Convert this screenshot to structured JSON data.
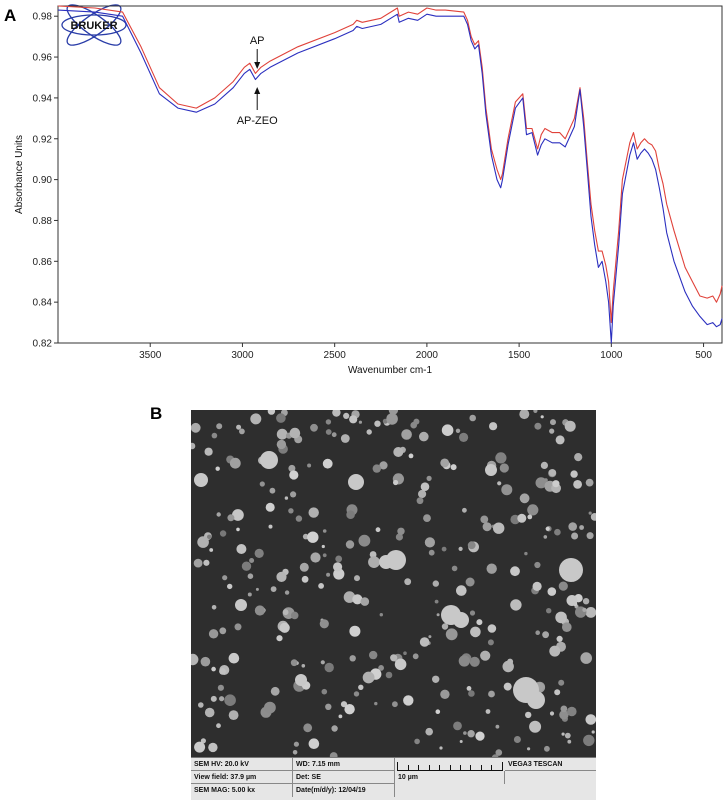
{
  "panels": {
    "a_label": "A",
    "b_label": "B"
  },
  "logo": {
    "text": "BRUKER",
    "color": "#2a3da8"
  },
  "chart_data": {
    "type": "line",
    "xlabel": "Wavenumber cm-1",
    "ylabel": "Absorbance Units",
    "xlim": [
      4000,
      400
    ],
    "ylim": [
      0.82,
      0.985
    ],
    "x_reversed": true,
    "grid": false,
    "xticks": [
      3500,
      3000,
      2500,
      2000,
      1500,
      1000,
      500
    ],
    "yticks": [
      0.82,
      0.84,
      0.86,
      0.88,
      0.9,
      0.92,
      0.94,
      0.96,
      0.98
    ],
    "annotations": [
      {
        "text": "AP",
        "x": 2920,
        "y": 0.953,
        "arrow": "down"
      },
      {
        "text": "AP-ZEO",
        "x": 2920,
        "y": 0.947,
        "arrow": "up"
      }
    ],
    "series": [
      {
        "color": "#e0423a",
        "x": [
          4000,
          3800,
          3650,
          3550,
          3450,
          3350,
          3250,
          3150,
          3050,
          2990,
          2960,
          2930,
          2900,
          2850,
          2700,
          2500,
          2400,
          2380,
          2350,
          2250,
          2160,
          2150,
          2100,
          2050,
          2000,
          1950,
          1900,
          1800,
          1780,
          1760,
          1740,
          1720,
          1700,
          1680,
          1650,
          1620,
          1600,
          1590,
          1560,
          1520,
          1480,
          1460,
          1430,
          1400,
          1380,
          1360,
          1320,
          1280,
          1250,
          1200,
          1170,
          1150,
          1130,
          1110,
          1090,
          1070,
          1050,
          1030,
          1015,
          1000,
          990,
          960,
          940,
          900,
          880,
          860,
          840,
          820,
          800,
          780,
          760,
          740,
          720,
          700,
          660,
          600,
          560,
          520,
          480,
          450,
          430,
          410,
          400
        ],
        "y": [
          0.985,
          0.984,
          0.982,
          0.965,
          0.945,
          0.937,
          0.935,
          0.94,
          0.948,
          0.955,
          0.957,
          0.952,
          0.955,
          0.958,
          0.965,
          0.972,
          0.976,
          0.978,
          0.977,
          0.979,
          0.984,
          0.98,
          0.982,
          0.981,
          0.984,
          0.983,
          0.983,
          0.982,
          0.978,
          0.97,
          0.966,
          0.968,
          0.955,
          0.935,
          0.915,
          0.905,
          0.9,
          0.903,
          0.92,
          0.938,
          0.942,
          0.925,
          0.925,
          0.915,
          0.922,
          0.925,
          0.923,
          0.923,
          0.92,
          0.93,
          0.945,
          0.93,
          0.908,
          0.888,
          0.875,
          0.865,
          0.865,
          0.858,
          0.85,
          0.83,
          0.845,
          0.875,
          0.9,
          0.918,
          0.923,
          0.915,
          0.918,
          0.92,
          0.918,
          0.917,
          0.914,
          0.905,
          0.898,
          0.888,
          0.875,
          0.857,
          0.85,
          0.843,
          0.842,
          0.843,
          0.84,
          0.844,
          0.848
        ]
      },
      {
        "color": "#2b2fbf",
        "x": [
          4000,
          3800,
          3650,
          3550,
          3450,
          3350,
          3250,
          3150,
          3050,
          2990,
          2960,
          2930,
          2900,
          2850,
          2700,
          2500,
          2400,
          2380,
          2350,
          2250,
          2160,
          2150,
          2100,
          2050,
          2000,
          1950,
          1900,
          1800,
          1780,
          1760,
          1740,
          1720,
          1700,
          1680,
          1650,
          1620,
          1600,
          1590,
          1560,
          1520,
          1480,
          1460,
          1430,
          1400,
          1380,
          1360,
          1320,
          1280,
          1250,
          1200,
          1170,
          1150,
          1130,
          1110,
          1090,
          1070,
          1050,
          1030,
          1015,
          1000,
          990,
          960,
          940,
          900,
          880,
          860,
          840,
          820,
          800,
          780,
          760,
          740,
          720,
          700,
          660,
          600,
          560,
          520,
          480,
          450,
          430,
          410,
          400
        ],
        "y": [
          0.983,
          0.982,
          0.98,
          0.962,
          0.942,
          0.935,
          0.933,
          0.937,
          0.945,
          0.952,
          0.954,
          0.949,
          0.952,
          0.955,
          0.962,
          0.969,
          0.973,
          0.975,
          0.974,
          0.976,
          0.981,
          0.977,
          0.979,
          0.978,
          0.981,
          0.98,
          0.98,
          0.98,
          0.976,
          0.968,
          0.964,
          0.966,
          0.952,
          0.932,
          0.912,
          0.9,
          0.896,
          0.9,
          0.917,
          0.935,
          0.94,
          0.922,
          0.923,
          0.912,
          0.917,
          0.92,
          0.918,
          0.918,
          0.916,
          0.926,
          0.944,
          0.926,
          0.904,
          0.882,
          0.868,
          0.857,
          0.86,
          0.85,
          0.84,
          0.82,
          0.838,
          0.868,
          0.893,
          0.912,
          0.918,
          0.91,
          0.913,
          0.915,
          0.913,
          0.91,
          0.905,
          0.896,
          0.886,
          0.874,
          0.86,
          0.845,
          0.838,
          0.833,
          0.829,
          0.83,
          0.828,
          0.829,
          0.832
        ]
      }
    ]
  },
  "sem": {
    "background": "#2e2e2e",
    "hv": "SEM HV: 20.0 kV",
    "wd": "WD: 7.15 mm",
    "view_field": "View field: 37.9 µm",
    "det": "Det: SE",
    "scale": "10 µm",
    "mag": "SEM MAG: 5.00 kx",
    "date": "Date(m/d/y): 12/04/19",
    "brand": "VEGA3 TESCAN"
  }
}
